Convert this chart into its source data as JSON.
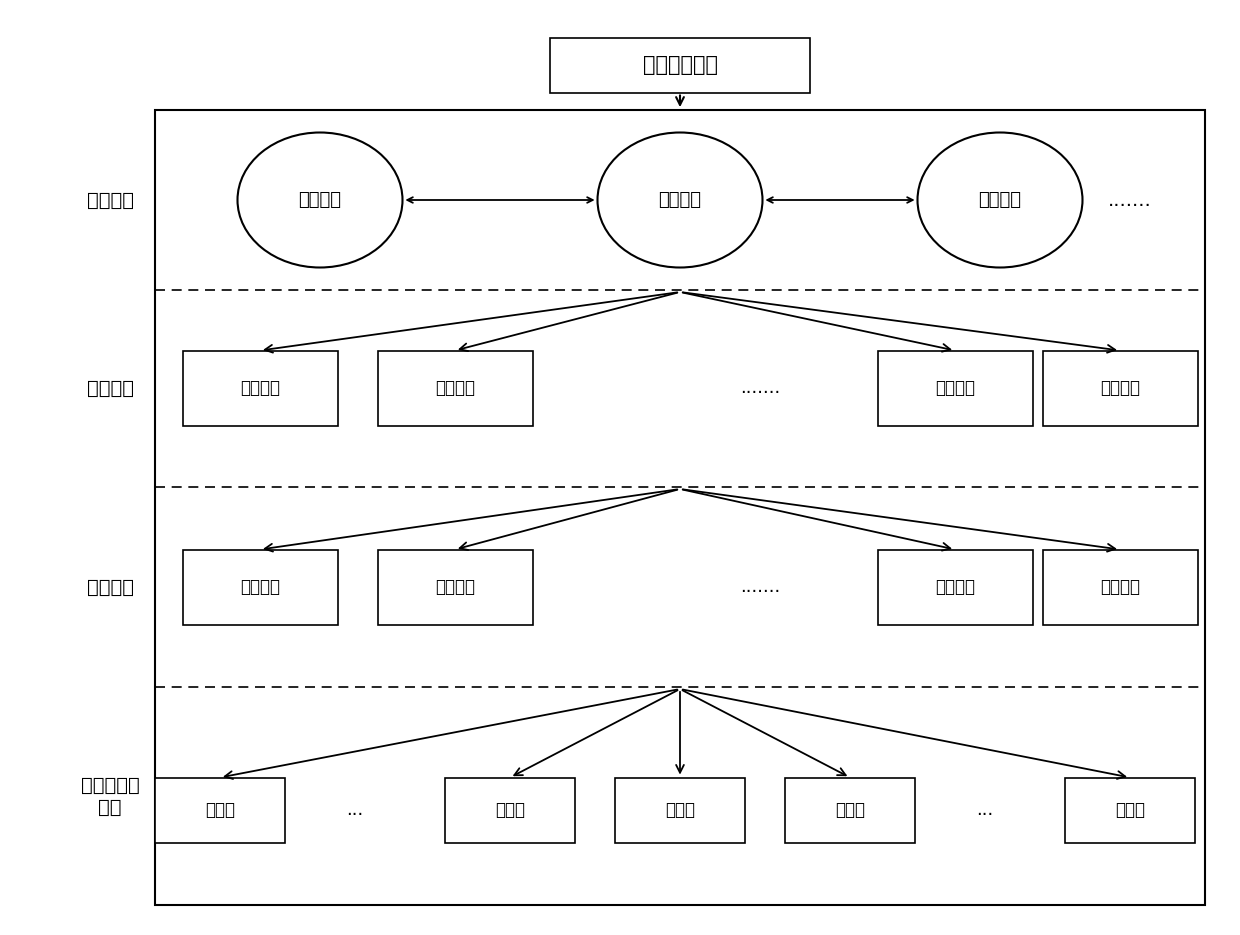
{
  "title": "联盟链服务器",
  "layer_labels": [
    "普通节点",
    "候选节点",
    "超级节点",
    "主节点与副\n节点"
  ],
  "normal_nodes": [
    "普通节点",
    "普通节点",
    "普通节点"
  ],
  "candidate_nodes": [
    "候选节点",
    "候选节点",
    ".......",
    "候选节点",
    "候选节点"
  ],
  "super_nodes": [
    "超级节点",
    "超级节点",
    ".......",
    "超级节点",
    "超级节点"
  ],
  "master_nodes": [
    "副节点",
    "...",
    "副节点",
    "主节点",
    "副节点",
    "...",
    "副节点"
  ],
  "bg_color": "#ffffff",
  "box_color": "#ffffff",
  "box_edge": "#000000",
  "text_color": "#000000",
  "font_size": 14,
  "label_font_size": 14
}
